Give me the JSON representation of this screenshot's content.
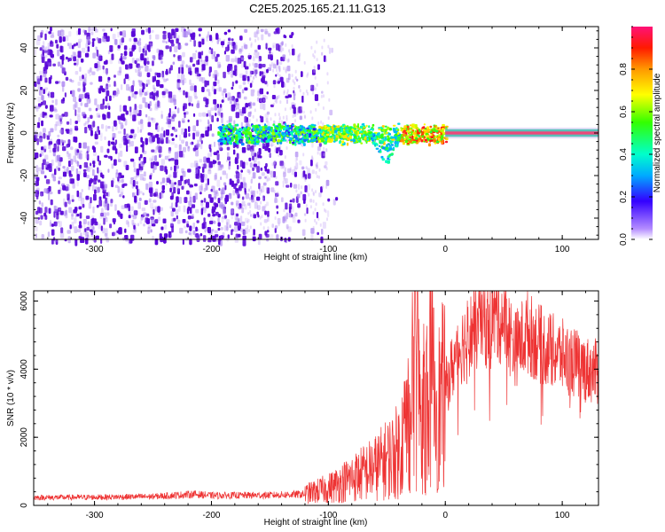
{
  "title": "C2E5.2025.165.21.11.G13",
  "colors": {
    "line": "#ee3333",
    "speckle": "#6a0ad6",
    "axis": "#000000",
    "background": "#ffffff"
  },
  "chart_data": [
    {
      "type": "heatmap",
      "xlabel": "Height of straight line (km)",
      "ylabel": "Frequency (Hz)",
      "xlim": [
        -352,
        131
      ],
      "ylim": [
        -50,
        50
      ],
      "x_ticks": [
        -300,
        -200,
        -100,
        0,
        100
      ],
      "y_ticks": [
        -40,
        -20,
        0,
        20,
        40
      ],
      "x_tick_labels": [
        "-300",
        "-200",
        "-100",
        "0",
        "100"
      ],
      "y_tick_labels": [
        "-40",
        "-20",
        "0",
        "20",
        "40"
      ],
      "colorbar": {
        "label": "Normalized spectral amplitude",
        "range": [
          0,
          1
        ],
        "ticks": [
          0.0,
          0.2,
          0.4,
          0.6,
          0.8
        ],
        "tick_labels": [
          "0.0",
          "0.2",
          "0.4",
          "0.6",
          "0.8"
        ],
        "colormap": "rainbow"
      },
      "features": {
        "noise_region_x": [
          -352,
          -100
        ],
        "noise_density_dense_until": -170,
        "signal_start_x": -195,
        "signal_band_center_hz": 0,
        "signal_band_halfwidth_hz": 3,
        "strong_line_start_x": 0,
        "strong_line_amplitude": 0.95,
        "dip_x": -52,
        "dip_min_hz": -16
      }
    },
    {
      "type": "line",
      "xlabel": "Height of straight line (km)",
      "ylabel": "SNR (10 * v/v)",
      "xlim": [
        -352,
        131
      ],
      "ylim": [
        0,
        6300
      ],
      "x_ticks": [
        -300,
        -200,
        -100,
        0,
        100
      ],
      "y_ticks": [
        0,
        2000,
        4000,
        6000
      ],
      "x_tick_labels": [
        "-300",
        "-200",
        "-100",
        "0",
        "100"
      ],
      "y_tick_labels": [
        "0",
        "2000",
        "4000",
        "6000"
      ],
      "series": [
        {
          "x": [
            -352,
            -300,
            -250,
            -215,
            -200,
            -150,
            -120,
            -100,
            -80,
            -60,
            -40,
            -30,
            -25,
            -20,
            -12,
            -5,
            0,
            10,
            20,
            30,
            40,
            50,
            60,
            70,
            80,
            90,
            100,
            110,
            120,
            131
          ],
          "y": [
            230,
            240,
            260,
            330,
            290,
            300,
            330,
            500,
            800,
            1100,
            1600,
            2800,
            4200,
            2600,
            3800,
            2900,
            3400,
            4500,
            5000,
            5300,
            5550,
            5450,
            4600,
            5100,
            4750,
            4550,
            4400,
            4200,
            4000,
            3900
          ]
        }
      ],
      "annotations": {
        "max_spike_x": -26,
        "max_spike_y": 6300,
        "secondary_spike_x": -10,
        "secondary_spike_y": 5800
      }
    }
  ]
}
